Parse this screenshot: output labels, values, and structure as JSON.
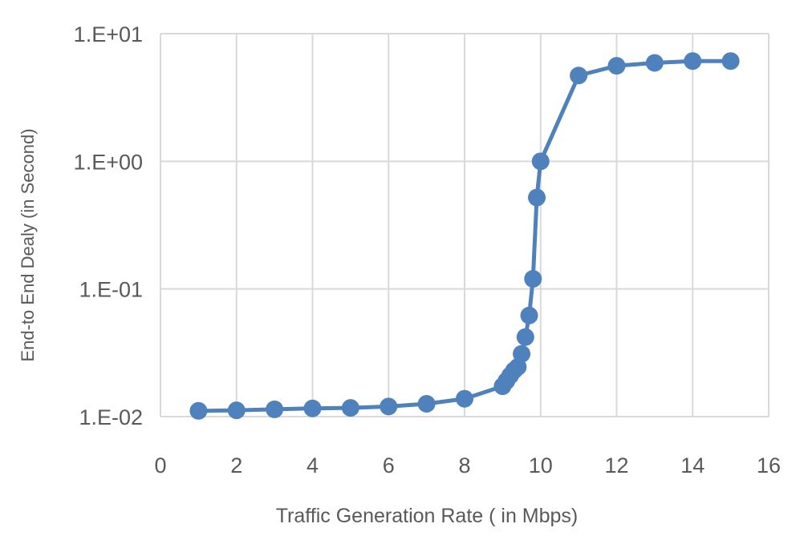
{
  "chart_data": {
    "type": "line",
    "title": "",
    "xlabel": "Traffic Generation Rate ( in Mbps)",
    "ylabel": "End-to End Dealy (in Second)",
    "xlim": [
      0,
      16
    ],
    "ylim": [
      0.01,
      10
    ],
    "yscale": "log",
    "grid": true,
    "legend": "none",
    "x_ticks": [
      "0",
      "2",
      "4",
      "6",
      "8",
      "10",
      "12",
      "14",
      "16"
    ],
    "y_ticks": [
      "1.E-02",
      "1.E-01",
      "1.E+00",
      "1.E+01"
    ],
    "series": [
      {
        "color": "#4f81bd",
        "x": [
          1,
          2,
          3,
          4,
          5,
          6,
          7,
          8,
          9,
          9.1,
          9.2,
          9.3,
          9.4,
          9.5,
          9.6,
          9.7,
          9.8,
          9.9,
          10,
          11,
          12,
          13,
          14,
          15
        ],
        "y": [
          0.0111,
          0.0112,
          0.0114,
          0.0116,
          0.0117,
          0.012,
          0.0126,
          0.0138,
          0.0173,
          0.019,
          0.021,
          0.023,
          0.0245,
          0.031,
          0.042,
          0.062,
          0.12,
          0.52,
          1.0,
          4.7,
          5.6,
          5.9,
          6.1,
          6.1
        ]
      }
    ]
  }
}
